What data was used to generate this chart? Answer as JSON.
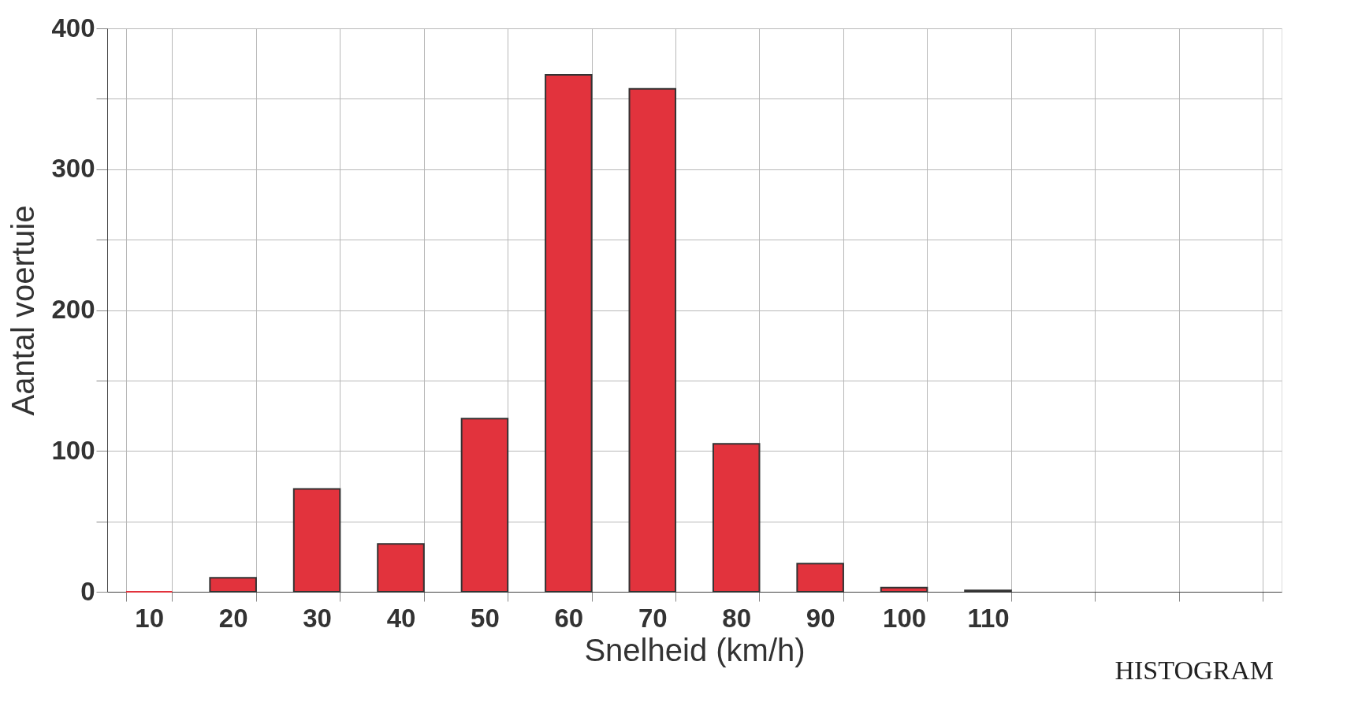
{
  "chart_data": {
    "type": "bar",
    "xlabel": "Snelheid (km/h)",
    "ylabel": "Aantal voertuie",
    "categories": [
      "10",
      "20",
      "30",
      "40",
      "50",
      "60",
      "70",
      "80",
      "90",
      "100",
      "110",
      null,
      null,
      null
    ],
    "values": [
      0,
      10,
      73,
      34,
      123,
      367,
      357,
      105,
      20,
      3,
      1,
      null,
      null,
      null
    ],
    "color": "#e2333d",
    "ylim": [
      0,
      400
    ],
    "yticks": [
      0,
      {
        "value": 50,
        "label": null
      },
      100,
      {
        "value": 150,
        "label": null
      },
      200,
      {
        "value": 250,
        "label": null
      },
      300,
      {
        "value": 350,
        "label": null
      },
      400
    ],
    "grid": true,
    "annotations": [
      "HISTOGRAM"
    ]
  }
}
